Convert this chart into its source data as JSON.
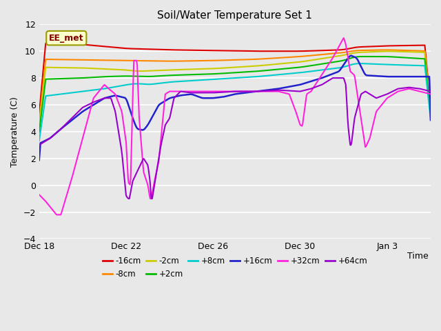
{
  "title": "Soil/Water Temperature Set 1",
  "xlabel": "Time",
  "ylabel": "Temperature (C)",
  "ylim": [
    -4,
    12
  ],
  "yticks": [
    -4,
    -2,
    0,
    2,
    4,
    6,
    8,
    10,
    12
  ],
  "plot_bg_color": "#e8e8e8",
  "annotation_text": "EE_met",
  "annotation_box_color": "#ffffcc",
  "annotation_text_color": "#800000",
  "xtick_positions": [
    0,
    4,
    8,
    12,
    16
  ],
  "xtick_labels": [
    "Dec 18",
    "Dec 22",
    "Dec 26",
    "Dec 30",
    "Jan 3"
  ],
  "series": {
    "-16cm": {
      "color": "#dd0000",
      "linewidth": 1.5
    },
    "-8cm": {
      "color": "#ff8800",
      "linewidth": 1.5
    },
    "-2cm": {
      "color": "#cccc00",
      "linewidth": 1.5
    },
    "+2cm": {
      "color": "#00bb00",
      "linewidth": 1.5
    },
    "+8cm": {
      "color": "#00cccc",
      "linewidth": 1.5
    },
    "+16cm": {
      "color": "#2222cc",
      "linewidth": 1.8
    },
    "+32cm": {
      "color": "#ff22dd",
      "linewidth": 1.5
    },
    "+64cm": {
      "color": "#9900cc",
      "linewidth": 1.5
    }
  },
  "legend_order": [
    "-16cm",
    "-8cm",
    "-2cm",
    "+2cm",
    "+8cm",
    "+16cm",
    "+32cm",
    "+64cm"
  ]
}
